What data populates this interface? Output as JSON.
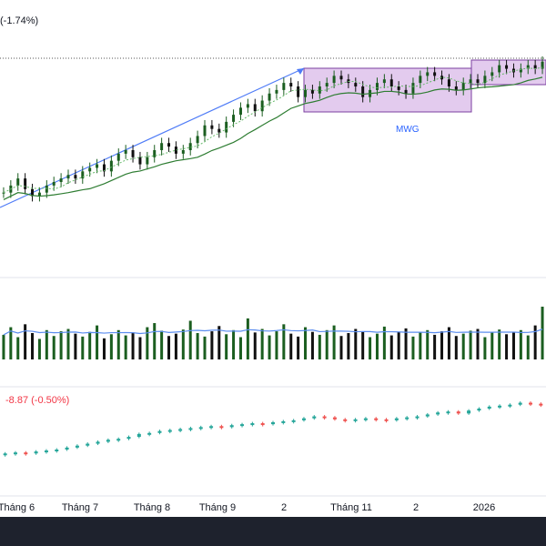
{
  "header": {
    "change_label": "(-1.74%)"
  },
  "ticker_label": "MWG",
  "index_label": "-8.87 (-0.50%)",
  "x_axis": {
    "ticks": [
      "Tháng 6",
      "Tháng 7",
      "Tháng 8",
      "Tháng 9",
      "2",
      "Tháng 11",
      "2",
      "2026"
    ]
  },
  "colors": {
    "up": "#1b5e20",
    "down": "#111111",
    "ma": "#2e7d32",
    "ma_dash": "#66bb6a",
    "trend": "#4f7cf7",
    "box_fill": "#e3cbee",
    "box_stroke": "#7b3fa0",
    "vol_ma": "#5b8def",
    "idx_up": "#26a69a",
    "idx_down": "#ef5350"
  },
  "chart_data": {
    "type": "candlestick",
    "ticker": "MWG",
    "x_ticks": [
      "Tháng 6",
      "Tháng 7",
      "Tháng 8",
      "Tháng 9",
      "2",
      "Tháng 11",
      "2",
      "2026"
    ],
    "price_change": "(-1.74%)",
    "index_change": "-8.87 (-0.50%)",
    "close_trend": [
      56,
      58,
      60,
      57,
      55,
      56,
      58,
      59,
      60,
      61,
      60,
      62,
      63,
      64,
      62,
      65,
      67,
      68,
      66,
      64,
      66,
      68,
      70,
      69,
      67,
      68,
      70,
      72,
      75,
      74,
      73,
      76,
      78,
      80,
      81,
      79,
      82,
      84,
      85,
      87,
      86,
      83,
      85,
      84,
      86,
      87,
      89,
      88,
      87,
      86,
      83,
      85,
      87,
      88,
      86,
      85,
      84,
      87,
      89,
      90,
      89,
      88,
      86,
      85,
      87,
      88,
      87,
      89,
      90,
      92,
      91,
      90,
      91,
      92,
      91,
      93
    ],
    "volume": [
      42,
      55,
      38,
      60,
      45,
      35,
      50,
      40,
      48,
      52,
      44,
      39,
      47,
      58,
      36,
      43,
      50,
      41,
      46,
      38,
      55,
      62,
      49,
      40,
      44,
      51,
      66,
      45,
      39,
      48,
      57,
      43,
      50,
      38,
      70,
      46,
      52,
      41,
      48,
      60,
      44,
      39,
      55,
      47,
      42,
      50,
      58,
      40,
      45,
      52,
      48,
      38,
      44,
      56,
      41,
      47,
      53,
      39,
      46,
      50,
      42,
      48,
      55,
      40,
      44,
      49,
      52,
      38,
      46,
      51,
      43,
      47,
      50,
      41,
      58,
      90
    ],
    "index_trend": [
      10,
      11,
      10,
      12,
      13,
      14,
      16,
      18,
      20,
      22,
      24,
      25,
      27,
      30,
      31,
      33,
      34,
      35,
      36,
      37,
      38,
      37,
      39,
      40,
      41,
      40,
      42,
      43,
      44,
      46,
      48,
      47,
      45,
      44,
      45,
      46,
      45,
      44,
      46,
      47,
      48,
      50,
      52,
      53,
      51,
      54,
      56,
      58,
      59,
      60,
      62,
      61,
      60
    ]
  }
}
